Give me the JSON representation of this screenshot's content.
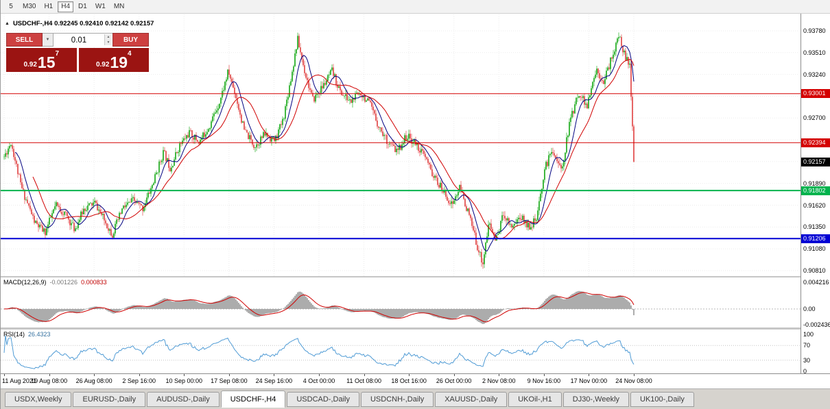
{
  "toolbar": {
    "timeframes": [
      {
        "label": "5",
        "active": false
      },
      {
        "label": "M30",
        "active": false
      },
      {
        "label": "H1",
        "active": false
      },
      {
        "label": "H4",
        "active": true
      },
      {
        "label": "D1",
        "active": false
      },
      {
        "label": "W1",
        "active": false
      },
      {
        "label": "MN",
        "active": false
      }
    ]
  },
  "header": {
    "text": "USDCHF-,H4 0.92245 0.92410 0.92142 0.92157"
  },
  "icons": {
    "panel_toggle": "▲",
    "dropdown": "▼",
    "spin_up": "▲",
    "spin_down": "▼"
  },
  "trade_panel": {
    "sell_label": "SELL",
    "buy_label": "BUY",
    "volume": "0.01",
    "sell_price": {
      "prefix": "0.92",
      "big": "15",
      "sup": "7"
    },
    "buy_price": {
      "prefix": "0.92",
      "big": "19",
      "sup": "4"
    }
  },
  "indicators_text": {
    "macd_name": "MACD(12,26,9)",
    "macd_main": "-0.001226",
    "macd_signal": "0.000833",
    "rsi_name": "RSI(14)",
    "rsi_value": "26.4323"
  },
  "colors": {
    "up": "#00a000",
    "down": "#dd3030",
    "ma_fast": "#000080",
    "ma_slow": "#d00000",
    "macd_hist": "#9e9e9e",
    "macd_signal": "#d00000",
    "rsi_line": "#4f9bd5",
    "grid": "#ebebeb"
  },
  "chart_data": {
    "type": "candlestick",
    "title": "USDCHF-,H4",
    "symbol": "USDCHF-",
    "timeframe": "H4",
    "ohlc": {
      "open": 0.92245,
      "high": 0.9241,
      "low": 0.92142,
      "close": 0.92157
    },
    "price_axis": {
      "min": 0.9081,
      "max": 0.9378,
      "tick_step": 0.0027,
      "ticks": [
        0.9378,
        0.9351,
        0.9324,
        0.9297,
        0.927,
        0.9243,
        0.9216,
        0.9189,
        0.9162,
        0.9135,
        0.9108,
        0.9081
      ]
    },
    "time_ticks": [
      "11 Aug 2021",
      "19 Aug 08:00",
      "26 Aug 08:00",
      "2 Sep 16:00",
      "10 Sep 00:00",
      "17 Sep 08:00",
      "24 Sep 16:00",
      "4 Oct 00:00",
      "11 Oct 08:00",
      "18 Oct 16:00",
      "26 Oct 00:00",
      "2 Nov 08:00",
      "9 Nov 16:00",
      "17 Nov 00:00",
      "24 Nov 08:00"
    ],
    "horizontal_lines": [
      {
        "price": 0.93001,
        "label": "0.93001",
        "color": "#d40000",
        "width": 1
      },
      {
        "price": 0.92394,
        "label": "0.92394",
        "color": "#d40000",
        "width": 1
      },
      {
        "price": 0.91802,
        "label": "0.91802",
        "color": "#00b34d",
        "width": 2
      },
      {
        "price": 0.91206,
        "label": "0.91206",
        "color": "#0000d4",
        "width": 2
      }
    ],
    "current_price": {
      "value": 0.92157,
      "label": "0.92157",
      "color": "#000000"
    },
    "candles": {
      "count": 460,
      "seed": 11,
      "noise": 0.0005,
      "wick": 0.0006,
      "anchors": [
        [
          0.0,
          0.9222
        ],
        [
          0.011,
          0.924
        ],
        [
          0.027,
          0.9185
        ],
        [
          0.049,
          0.914
        ],
        [
          0.065,
          0.9128
        ],
        [
          0.082,
          0.9162
        ],
        [
          0.098,
          0.915
        ],
        [
          0.112,
          0.9132
        ],
        [
          0.127,
          0.9158
        ],
        [
          0.144,
          0.9165
        ],
        [
          0.16,
          0.9142
        ],
        [
          0.172,
          0.9126
        ],
        [
          0.188,
          0.9158
        ],
        [
          0.205,
          0.9168
        ],
        [
          0.22,
          0.9158
        ],
        [
          0.236,
          0.9188
        ],
        [
          0.253,
          0.9228
        ],
        [
          0.264,
          0.9208
        ],
        [
          0.278,
          0.9235
        ],
        [
          0.294,
          0.9252
        ],
        [
          0.31,
          0.924
        ],
        [
          0.327,
          0.9262
        ],
        [
          0.343,
          0.9292
        ],
        [
          0.356,
          0.9328
        ],
        [
          0.367,
          0.93
        ],
        [
          0.381,
          0.9255
        ],
        [
          0.398,
          0.9235
        ],
        [
          0.414,
          0.925
        ],
        [
          0.43,
          0.9242
        ],
        [
          0.443,
          0.9268
        ],
        [
          0.458,
          0.933
        ],
        [
          0.466,
          0.9368
        ],
        [
          0.476,
          0.9332
        ],
        [
          0.49,
          0.9292
        ],
        [
          0.507,
          0.931
        ],
        [
          0.521,
          0.9328
        ],
        [
          0.534,
          0.9302
        ],
        [
          0.55,
          0.929
        ],
        [
          0.566,
          0.9302
        ],
        [
          0.581,
          0.9286
        ],
        [
          0.596,
          0.9258
        ],
        [
          0.61,
          0.924
        ],
        [
          0.624,
          0.9228
        ],
        [
          0.639,
          0.9248
        ],
        [
          0.654,
          0.9238
        ],
        [
          0.668,
          0.9222
        ],
        [
          0.683,
          0.9196
        ],
        [
          0.697,
          0.918
        ],
        [
          0.711,
          0.9162
        ],
        [
          0.724,
          0.9184
        ],
        [
          0.738,
          0.915
        ],
        [
          0.752,
          0.911
        ],
        [
          0.76,
          0.909
        ],
        [
          0.77,
          0.914
        ],
        [
          0.781,
          0.9118
        ],
        [
          0.793,
          0.9152
        ],
        [
          0.806,
          0.9136
        ],
        [
          0.82,
          0.9148
        ],
        [
          0.833,
          0.9136
        ],
        [
          0.846,
          0.9144
        ],
        [
          0.858,
          0.9206
        ],
        [
          0.871,
          0.9232
        ],
        [
          0.885,
          0.9204
        ],
        [
          0.899,
          0.9268
        ],
        [
          0.913,
          0.9302
        ],
        [
          0.926,
          0.9284
        ],
        [
          0.94,
          0.933
        ],
        [
          0.953,
          0.9316
        ],
        [
          0.966,
          0.9348
        ],
        [
          0.977,
          0.9372
        ],
        [
          0.986,
          0.9346
        ],
        [
          0.994,
          0.9332
        ],
        [
          1.0,
          0.9216
        ]
      ]
    },
    "moving_averages": [
      {
        "period": 9,
        "color": "#000080"
      },
      {
        "period": 22,
        "color": "#d00000"
      }
    ],
    "macd": {
      "fast": 12,
      "slow": 26,
      "signal": 9,
      "main_value": -0.001226,
      "signal_value": 0.000833,
      "scale": {
        "max": 0.004216,
        "zero": 0.0,
        "min": -0.002436,
        "max_label": "0.004216",
        "zero_label": "0.00",
        "min_label": "-0.002436"
      }
    },
    "rsi": {
      "period": 14,
      "value": 26.4323,
      "levels": [
        100,
        70,
        30,
        0
      ]
    }
  },
  "tabs": [
    {
      "label": "USDX,Weekly",
      "active": false
    },
    {
      "label": "EURUSD-,Daily",
      "active": false
    },
    {
      "label": "AUDUSD-,Daily",
      "active": false
    },
    {
      "label": "USDCHF-,H4",
      "active": true
    },
    {
      "label": "USDCAD-,Daily",
      "active": false
    },
    {
      "label": "USDCNH-,Daily",
      "active": false
    },
    {
      "label": "XAUUSD-,Daily",
      "active": false
    },
    {
      "label": "UKOil-,H1",
      "active": false
    },
    {
      "label": "DJ30-,Weekly",
      "active": false
    },
    {
      "label": "UK100-,Daily",
      "active": false
    }
  ]
}
